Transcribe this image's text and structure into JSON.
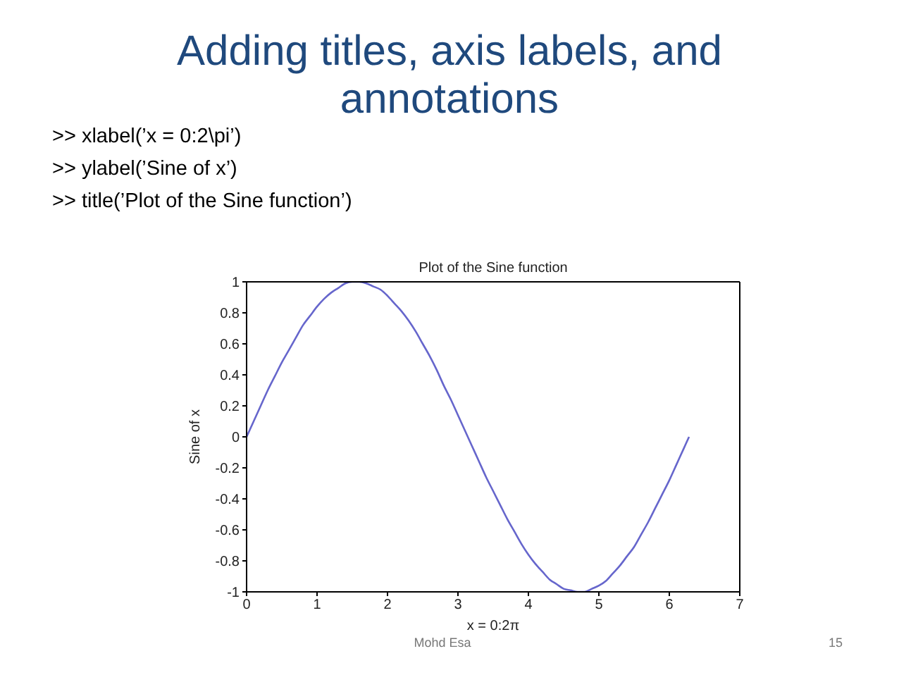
{
  "chart_data": {
    "type": "line",
    "title": "Plot of the Sine function",
    "xlabel": "x = 0:2π",
    "ylabel": "Sine of x",
    "annotations": [
      "Adding titles, axis labels, and annotations",
      ">> xlabel(’x = 0:2\\pi’)",
      ">> ylabel(’Sine of x’)",
      ">> title(’Plot of the Sine function’)",
      "Mohd Esa",
      "15"
    ],
    "x": [
      0,
      0.1,
      0.2,
      0.3,
      0.4,
      0.5,
      0.6,
      0.7,
      0.8,
      0.9,
      1.0,
      1.1,
      1.2,
      1.3,
      1.4,
      1.5,
      1.6,
      1.7,
      1.8,
      1.9,
      2.0,
      2.1,
      2.2,
      2.3,
      2.4,
      2.5,
      2.6,
      2.7,
      2.8,
      2.9,
      3.0,
      3.1,
      3.2,
      3.3,
      3.4,
      3.5,
      3.6,
      3.7,
      3.8,
      3.9,
      4.0,
      4.1,
      4.2,
      4.3,
      4.4,
      4.5,
      4.6,
      4.7,
      4.8,
      4.9,
      5.0,
      5.1,
      5.2,
      5.3,
      5.4,
      5.5,
      5.6,
      5.7,
      5.8,
      5.9,
      6.0,
      6.1,
      6.2,
      6.28
    ],
    "series": [
      {
        "color": "#6666cc",
        "values": [
          0,
          0.1,
          0.2,
          0.3,
          0.39,
          0.48,
          0.56,
          0.64,
          0.72,
          0.78,
          0.84,
          0.89,
          0.93,
          0.96,
          0.99,
          1.0,
          1.0,
          0.99,
          0.97,
          0.95,
          0.91,
          0.86,
          0.81,
          0.75,
          0.68,
          0.6,
          0.52,
          0.43,
          0.33,
          0.24,
          0.14,
          0.04,
          -0.06,
          -0.16,
          -0.26,
          -0.35,
          -0.44,
          -0.53,
          -0.61,
          -0.69,
          -0.76,
          -0.82,
          -0.87,
          -0.92,
          -0.95,
          -0.98,
          -0.99,
          -1.0,
          -1.0,
          -0.98,
          -0.96,
          -0.93,
          -0.88,
          -0.83,
          -0.77,
          -0.71,
          -0.63,
          -0.55,
          -0.46,
          -0.37,
          -0.28,
          -0.18,
          -0.08,
          0
        ]
      }
    ],
    "xlim": [
      0,
      7
    ],
    "xticks": [
      0,
      1,
      2,
      3,
      4,
      5,
      6,
      7
    ],
    "ylim": [
      -1,
      1
    ],
    "yticks": [
      -1,
      -0.8,
      -0.6,
      -0.4,
      -0.2,
      0,
      0.2,
      0.4,
      0.6,
      0.8,
      1
    ],
    "marker": "none",
    "line_style": "solid"
  }
}
